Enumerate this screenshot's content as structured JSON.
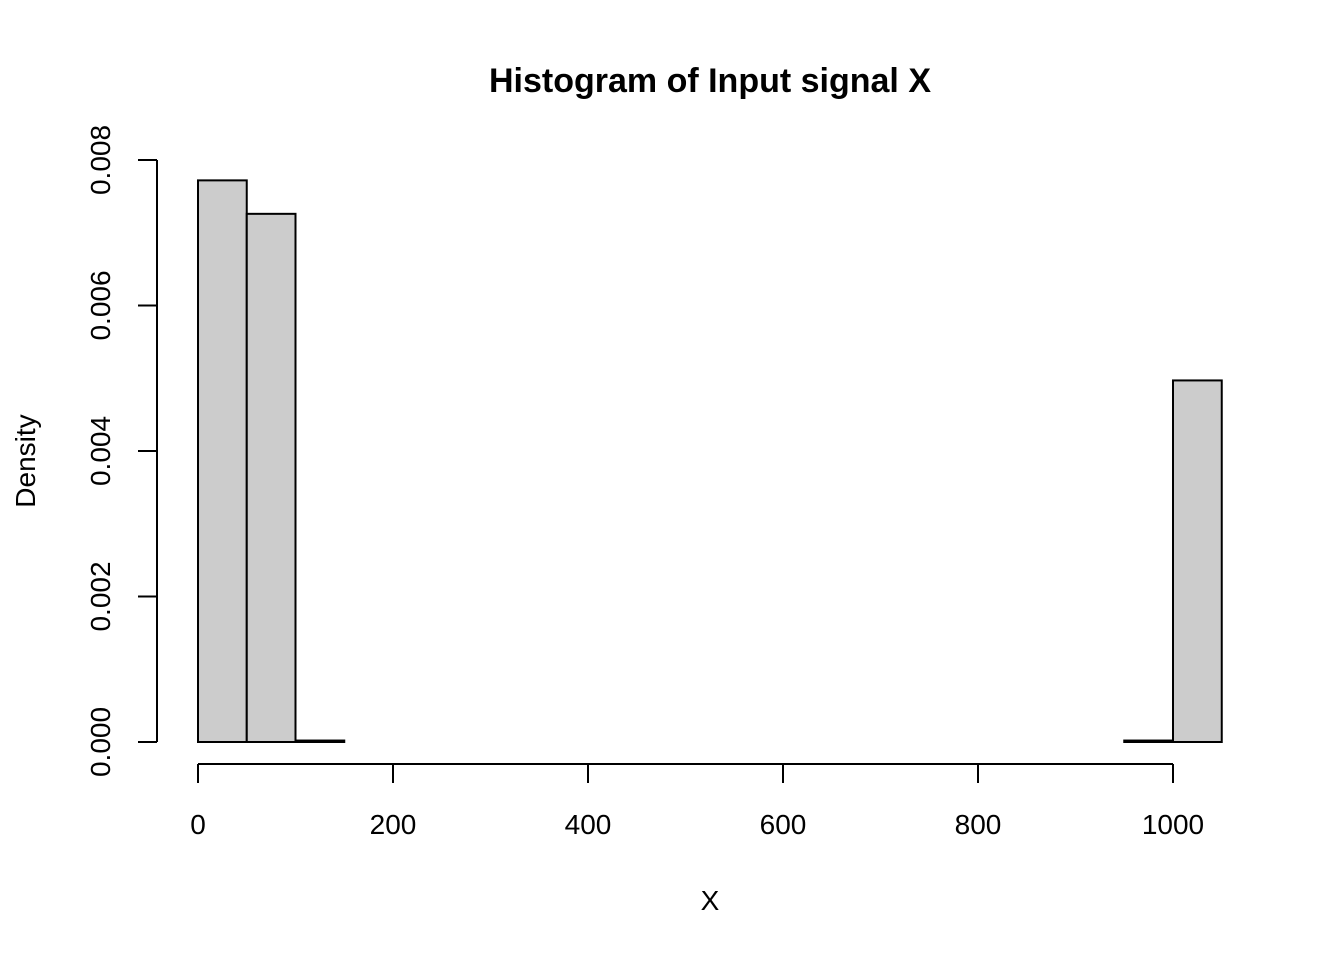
{
  "chart_data": {
    "type": "bar",
    "title": "Histogram of Input signal X",
    "xlabel": "X",
    "ylabel": "Density",
    "bin_width": 50,
    "bins": [
      {
        "x0": 0,
        "x1": 50,
        "density": 0.00772
      },
      {
        "x0": 50,
        "x1": 100,
        "density": 0.00726
      },
      {
        "x0": 100,
        "x1": 150,
        "density": 2e-05
      },
      {
        "x0": 150,
        "x1": 200,
        "density": 0
      },
      {
        "x0": 200,
        "x1": 250,
        "density": 0
      },
      {
        "x0": 250,
        "x1": 300,
        "density": 0
      },
      {
        "x0": 300,
        "x1": 350,
        "density": 0
      },
      {
        "x0": 350,
        "x1": 400,
        "density": 0
      },
      {
        "x0": 400,
        "x1": 450,
        "density": 0
      },
      {
        "x0": 450,
        "x1": 500,
        "density": 0
      },
      {
        "x0": 500,
        "x1": 550,
        "density": 0
      },
      {
        "x0": 550,
        "x1": 600,
        "density": 0
      },
      {
        "x0": 600,
        "x1": 650,
        "density": 0
      },
      {
        "x0": 650,
        "x1": 700,
        "density": 0
      },
      {
        "x0": 700,
        "x1": 750,
        "density": 0
      },
      {
        "x0": 750,
        "x1": 800,
        "density": 0
      },
      {
        "x0": 800,
        "x1": 850,
        "density": 0
      },
      {
        "x0": 850,
        "x1": 900,
        "density": 0
      },
      {
        "x0": 900,
        "x1": 950,
        "density": 0
      },
      {
        "x0": 950,
        "x1": 1000,
        "density": 2e-05
      },
      {
        "x0": 1000,
        "x1": 1050,
        "density": 0.00497
      }
    ],
    "xlim": [
      0,
      1050
    ],
    "ylim": [
      0,
      0.008
    ],
    "xticks": [
      0,
      200,
      400,
      600,
      800,
      1000
    ],
    "xtick_labels": [
      "0",
      "200",
      "400",
      "600",
      "800",
      "1000"
    ],
    "yticks": [
      0,
      0.002,
      0.004,
      0.006,
      0.008
    ],
    "ytick_labels": [
      "0.000",
      "0.002",
      "0.004",
      "0.006",
      "0.008"
    ],
    "grid": false,
    "bar_color": "#cccccc",
    "edge_color": "#000000"
  }
}
